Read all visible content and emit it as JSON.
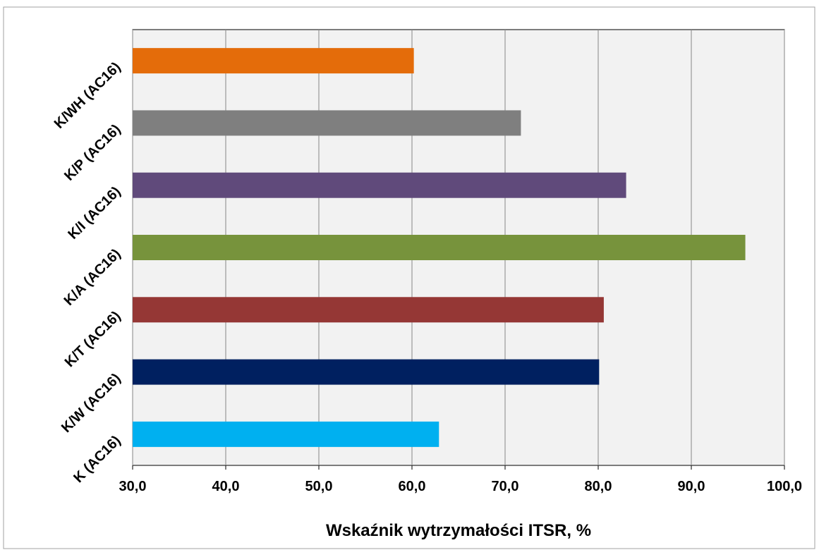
{
  "chart_data": {
    "type": "bar",
    "orientation": "horizontal",
    "xlabel": "Wskaźnik wytrzymałości ITSR, %",
    "categories": [
      "K (AC16)",
      "K/W (AC16)",
      "K/T (AC16)",
      "K/A (AC16)",
      "K/I (AC16)",
      "K/P (AC16)",
      "K/WH (AC16)"
    ],
    "values": [
      62.9,
      80.1,
      80.6,
      95.8,
      83.0,
      71.7,
      60.2
    ],
    "colors": [
      "#00b0f0",
      "#002060",
      "#953735",
      "#77933c",
      "#604a7b",
      "#7f7f7f",
      "#e46c0a"
    ],
    "xlim": [
      30,
      100
    ],
    "xticks": [
      {
        "value": 30,
        "label": "30,0"
      },
      {
        "value": 40,
        "label": "40,0"
      },
      {
        "value": 50,
        "label": "50,0"
      },
      {
        "value": 60,
        "label": "60,0"
      },
      {
        "value": 70,
        "label": "70,0"
      },
      {
        "value": 80,
        "label": "80,0"
      },
      {
        "value": 90,
        "label": "90,0"
      },
      {
        "value": 100,
        "label": "100,0"
      }
    ],
    "grid": true
  }
}
